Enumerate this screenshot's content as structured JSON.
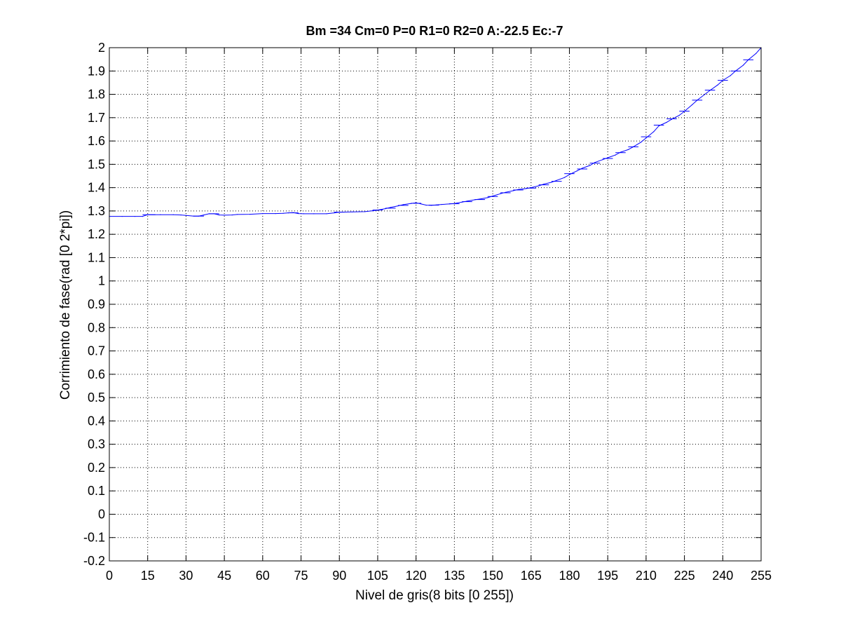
{
  "chart_data": {
    "type": "line",
    "title": "Bm =34  Cm=0  P=0  R1=0  R2=0  A:-22.5  Ec:-7",
    "xlabel": "Nivel de gris(8 bits [0 255])",
    "ylabel": "Corrimiento de fase(rad [0 2*pi])",
    "xlim": [
      0,
      255
    ],
    "ylim": [
      -0.2,
      2
    ],
    "grid": true,
    "grid_style": "dotted",
    "x_ticks": [
      0,
      15,
      30,
      45,
      60,
      75,
      90,
      105,
      120,
      135,
      150,
      165,
      180,
      195,
      210,
      225,
      240,
      255
    ],
    "y_ticks": [
      -0.2,
      -0.1,
      0,
      0.1,
      0.2,
      0.3,
      0.4,
      0.5,
      0.6,
      0.7,
      0.8,
      0.9,
      1,
      1.1,
      1.2,
      1.3,
      1.4,
      1.5,
      1.6,
      1.7,
      1.8,
      1.9,
      2
    ],
    "x_tick_labels": [
      "0",
      "15",
      "30",
      "45",
      "60",
      "75",
      "90",
      "105",
      "120",
      "135",
      "150",
      "165",
      "180",
      "195",
      "210",
      "225",
      "240",
      "255"
    ],
    "y_tick_labels": [
      "-0.2",
      "-0.1",
      "0",
      "0.1",
      "0.2",
      "0.3",
      "0.4",
      "0.5",
      "0.6",
      "0.7",
      "0.8",
      "0.9",
      "1",
      "1.1",
      "1.2",
      "1.3",
      "1.4",
      "1.5",
      "1.6",
      "1.7",
      "1.8",
      "1.9",
      "2"
    ],
    "series": [
      {
        "color": "#0000ff",
        "x": [
          0,
          5,
          10,
          13,
          15,
          20,
          25,
          28,
          30,
          33,
          35,
          37,
          39,
          41,
          43,
          45,
          48,
          50,
          55,
          60,
          65,
          68,
          70,
          72,
          74,
          76,
          80,
          85,
          88,
          90,
          95,
          100,
          103,
          105,
          108,
          110,
          113,
          115,
          118,
          120,
          122,
          124,
          126,
          128,
          130,
          133,
          135,
          138,
          140,
          143,
          145,
          148,
          150,
          153,
          155,
          158,
          160,
          163,
          165,
          168,
          170,
          173,
          175,
          178,
          180,
          183,
          185,
          188,
          190,
          193,
          195,
          198,
          200,
          203,
          205,
          208,
          210,
          213,
          215,
          218,
          220,
          223,
          225,
          228,
          230,
          233,
          235,
          238,
          240,
          243,
          245,
          248,
          250,
          253,
          255
        ],
        "y": [
          1.277,
          1.277,
          1.277,
          1.277,
          1.284,
          1.284,
          1.284,
          1.283,
          1.281,
          1.278,
          1.278,
          1.283,
          1.288,
          1.288,
          1.283,
          1.282,
          1.283,
          1.285,
          1.286,
          1.289,
          1.289,
          1.29,
          1.292,
          1.293,
          1.289,
          1.288,
          1.288,
          1.288,
          1.292,
          1.295,
          1.296,
          1.297,
          1.301,
          1.304,
          1.31,
          1.315,
          1.322,
          1.327,
          1.332,
          1.335,
          1.33,
          1.325,
          1.324,
          1.326,
          1.328,
          1.33,
          1.332,
          1.338,
          1.342,
          1.348,
          1.351,
          1.357,
          1.364,
          1.374,
          1.38,
          1.387,
          1.392,
          1.396,
          1.4,
          1.408,
          1.415,
          1.423,
          1.431,
          1.443,
          1.456,
          1.472,
          1.483,
          1.495,
          1.508,
          1.52,
          1.528,
          1.54,
          1.552,
          1.563,
          1.575,
          1.595,
          1.613,
          1.64,
          1.665,
          1.68,
          1.693,
          1.71,
          1.727,
          1.755,
          1.775,
          1.8,
          1.817,
          1.84,
          1.86,
          1.88,
          1.9,
          1.925,
          1.948,
          1.975,
          2.0
        ]
      }
    ],
    "step_markers": [
      {
        "x1": 13,
        "x2": 18,
        "y": 1.284
      },
      {
        "x1": 33,
        "x2": 37,
        "y": 1.278
      },
      {
        "x1": 39,
        "x2": 43,
        "y": 1.288
      },
      {
        "x1": 70,
        "x2": 74,
        "y": 1.292
      },
      {
        "x1": 88,
        "x2": 92,
        "y": 1.295
      },
      {
        "x1": 103,
        "x2": 107,
        "y": 1.304
      },
      {
        "x1": 108,
        "x2": 112,
        "y": 1.312
      },
      {
        "x1": 113,
        "x2": 117,
        "y": 1.324
      },
      {
        "x1": 118,
        "x2": 122,
        "y": 1.333
      },
      {
        "x1": 125,
        "x2": 129,
        "y": 1.325
      },
      {
        "x1": 133,
        "x2": 137,
        "y": 1.331
      },
      {
        "x1": 138,
        "x2": 142,
        "y": 1.34
      },
      {
        "x1": 143,
        "x2": 147,
        "y": 1.349
      },
      {
        "x1": 148,
        "x2": 152,
        "y": 1.362
      },
      {
        "x1": 153,
        "x2": 157,
        "y": 1.378
      },
      {
        "x1": 158,
        "x2": 162,
        "y": 1.39
      },
      {
        "x1": 163,
        "x2": 167,
        "y": 1.398
      },
      {
        "x1": 168,
        "x2": 172,
        "y": 1.412
      },
      {
        "x1": 173,
        "x2": 177,
        "y": 1.427
      },
      {
        "x1": 178,
        "x2": 182,
        "y": 1.46
      },
      {
        "x1": 183,
        "x2": 187,
        "y": 1.48
      },
      {
        "x1": 188,
        "x2": 192,
        "y": 1.505
      },
      {
        "x1": 193,
        "x2": 197,
        "y": 1.525
      },
      {
        "x1": 198,
        "x2": 202,
        "y": 1.55
      },
      {
        "x1": 203,
        "x2": 207,
        "y": 1.575
      },
      {
        "x1": 208,
        "x2": 212,
        "y": 1.618
      },
      {
        "x1": 213,
        "x2": 217,
        "y": 1.668
      },
      {
        "x1": 218,
        "x2": 222,
        "y": 1.695
      },
      {
        "x1": 223,
        "x2": 227,
        "y": 1.728
      },
      {
        "x1": 228,
        "x2": 232,
        "y": 1.775
      },
      {
        "x1": 233,
        "x2": 237,
        "y": 1.818
      },
      {
        "x1": 238,
        "x2": 242,
        "y": 1.86
      },
      {
        "x1": 243,
        "x2": 247,
        "y": 1.9
      },
      {
        "x1": 248,
        "x2": 252,
        "y": 1.948
      }
    ]
  }
}
